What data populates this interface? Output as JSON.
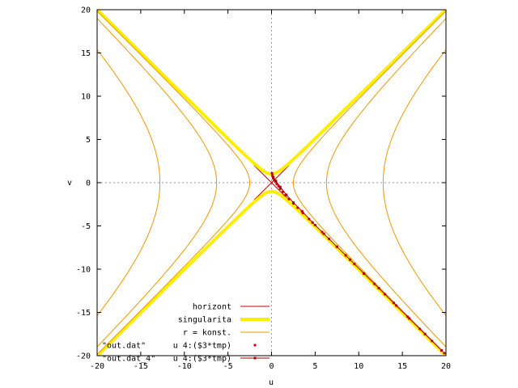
{
  "chart_data": {
    "type": "line",
    "title": "",
    "xlabel": "u",
    "ylabel": "v",
    "xlim": [
      -20,
      20
    ],
    "ylim": [
      -20,
      20
    ],
    "x_ticks": [
      -20,
      -15,
      -10,
      -5,
      0,
      5,
      10,
      15,
      20
    ],
    "y_ticks": [
      -20,
      -15,
      -10,
      -5,
      0,
      5,
      10,
      15,
      20
    ],
    "grid": false,
    "zero_axes": true,
    "legend_position": "bottom-left",
    "colors": {
      "horizont": "#cc0000",
      "singularita": "#ffee00",
      "konst": "#ee9900",
      "points1": "#cc0000",
      "points2": "#aa0000",
      "axes": "#000000",
      "zero": "#999999"
    },
    "legend": [
      {
        "label": "horizont",
        "style": "line",
        "color": "#cc0000",
        "width": 1
      },
      {
        "label": "singularita",
        "style": "line",
        "color": "#ffee00",
        "width": 4
      },
      {
        "label": "r = konst.",
        "style": "line",
        "color": "#ee9900",
        "width": 1
      },
      {
        "label": "u 4:($3*tmp)",
        "prefix": "\"out.dat\"",
        "style": "points",
        "color": "#cc0000"
      },
      {
        "label": "u 4:($3*tmp)",
        "prefix": "\"out.dat_4\"",
        "style": "linespoints",
        "color": "#aa0000"
      }
    ],
    "series": [
      {
        "name": "horizont",
        "kind": "lines",
        "lines": [
          [
            [
              -2,
              -2
            ],
            [
              2,
              2
            ]
          ],
          [
            [
              -2,
              2
            ],
            [
              2,
              -2
            ]
          ]
        ]
      },
      {
        "name": "singularita",
        "kind": "hyperbola_v",
        "a": 1.0
      },
      {
        "name": "r = konst.",
        "kind": "hyperbola_u",
        "a_values": [
          2.5,
          6.3,
          12.8
        ]
      },
      {
        "name": "\"out.dat\" u 4:($3*tmp)",
        "kind": "scatter",
        "x": [
          0.05,
          0.1,
          0.15,
          0.2,
          0.3,
          0.45,
          0.6,
          0.8,
          1.0,
          1.3,
          1.6,
          2.0,
          2.5,
          3.0,
          3.6,
          4.3,
          5.0,
          5.8,
          6.6,
          7.5,
          8.5,
          9.5,
          10.6,
          11.8,
          13.0,
          14.3,
          15.6,
          17.0,
          18.4,
          19.8
        ],
        "y": [
          1.1,
          0.9,
          0.7,
          0.5,
          0.3,
          0.1,
          -0.15,
          -0.4,
          -0.7,
          -1.05,
          -1.45,
          -1.9,
          -2.4,
          -2.9,
          -3.5,
          -4.2,
          -4.9,
          -5.7,
          -6.5,
          -7.4,
          -8.4,
          -9.4,
          -10.5,
          -11.7,
          -12.9,
          -14.2,
          -15.5,
          -16.9,
          -18.3,
          -19.7
        ]
      },
      {
        "name": "\"out.dat_4\" u 4:($3*tmp)",
        "kind": "linespoints",
        "x": [
          0.2,
          0.5,
          1.0,
          1.7,
          2.5,
          3.5,
          4.7,
          6.0,
          7.5,
          9.0,
          10.6,
          12.3,
          14.0,
          15.8,
          17.6,
          19.5
        ],
        "y": [
          0.6,
          0.2,
          -0.5,
          -1.4,
          -2.3,
          -3.3,
          -4.6,
          -5.9,
          -7.4,
          -8.9,
          -10.5,
          -12.2,
          -13.9,
          -15.7,
          -17.5,
          -19.4
        ]
      }
    ]
  }
}
